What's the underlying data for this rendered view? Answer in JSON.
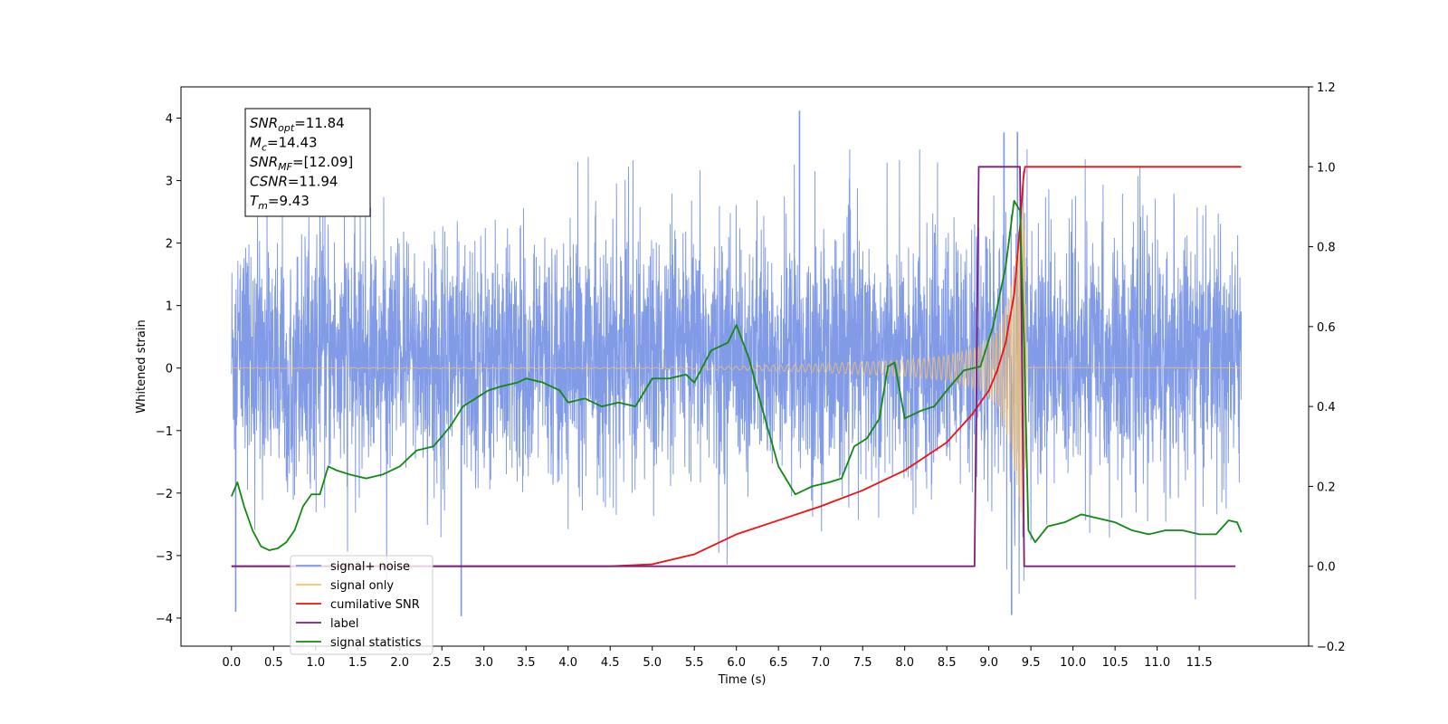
{
  "chart_data": {
    "type": "line",
    "xlabel": "Time (s)",
    "ylabel": "Whitened strain",
    "xlim": [
      -0.6,
      12.8
    ],
    "ylim": [
      -4.45,
      4.5
    ],
    "y2lim": [
      -0.2,
      1.2
    ],
    "x_ticks": [
      "0.0",
      "0.5",
      "1.0",
      "1.5",
      "2.0",
      "2.5",
      "3.0",
      "3.5",
      "4.0",
      "4.5",
      "5.0",
      "5.5",
      "6.0",
      "6.5",
      "7.0",
      "7.5",
      "8.0",
      "8.5",
      "9.0",
      "9.5",
      "10.0",
      "10.5",
      "11.0",
      "11.5"
    ],
    "y_ticks": [
      4,
      3,
      2,
      1,
      0,
      -1,
      -2,
      -3,
      -4
    ],
    "y_tick_labels": [
      "4",
      "3",
      "2",
      "1",
      "0",
      "−1",
      "−2",
      "−3",
      "−4"
    ],
    "y2_ticks": [
      1.2,
      1.0,
      0.8,
      0.6,
      0.4,
      0.2,
      0.0,
      -0.2
    ],
    "y2_tick_labels": [
      "1.2",
      "1.0",
      "0.8",
      "0.6",
      "0.4",
      "0.2",
      "0.0",
      "−0.2"
    ],
    "annotation": {
      "lines": [
        {
          "base": "SNR",
          "sub": "opt",
          "value": "=11.84"
        },
        {
          "base": "M",
          "sub": "c",
          "value": "=14.43"
        },
        {
          "base": "SNR",
          "sub": "MF",
          "value": "=[12.09]"
        },
        {
          "base": "CSNR",
          "sub": "",
          "value": "=11.94"
        },
        {
          "base": "T",
          "sub": "m",
          "value": "=9.43"
        }
      ]
    },
    "legend": {
      "position": "lower-left",
      "entries": [
        {
          "label": "signal+ noise",
          "color": "#7b96e6"
        },
        {
          "label": "signal only",
          "color": "#f5c26b"
        },
        {
          "label": "cumilative SNR",
          "color": "#ee1111"
        },
        {
          "label": "label",
          "color": "#7a1f7a"
        },
        {
          "label": "signal statistics",
          "color": "#118811"
        }
      ]
    },
    "noise_band": {
      "name": "signal+ noise",
      "axis": "left",
      "color": "#7b96e6",
      "x_range": [
        0,
        12.0
      ],
      "typical_range": [
        -1.6,
        2.3
      ],
      "extreme_peaks": [
        {
          "x": 0.05,
          "y": -3.9
        },
        {
          "x": 2.73,
          "y": -3.97
        },
        {
          "x": 6.75,
          "y": 4.12
        },
        {
          "x": 9.18,
          "y": 3.77
        },
        {
          "x": 9.27,
          "y": -3.95
        },
        {
          "x": 9.34,
          "y": 3.78
        }
      ]
    },
    "signal_only": {
      "name": "signal only",
      "axis": "left",
      "color": "#f5c26b",
      "envelope": [
        {
          "x": 0.0,
          "amp": 0.005
        },
        {
          "x": 5.0,
          "amp": 0.01
        },
        {
          "x": 6.0,
          "amp": 0.03
        },
        {
          "x": 7.0,
          "amp": 0.07
        },
        {
          "x": 8.0,
          "amp": 0.13
        },
        {
          "x": 8.5,
          "amp": 0.2
        },
        {
          "x": 8.9,
          "amp": 0.35
        },
        {
          "x": 9.1,
          "amp": 0.6
        },
        {
          "x": 9.25,
          "amp": 1.2
        },
        {
          "x": 9.35,
          "amp": 2.0
        },
        {
          "x": 9.42,
          "amp": 2.7
        },
        {
          "x": 9.45,
          "amp": 0.02
        },
        {
          "x": 12.0,
          "amp": 0.005
        }
      ]
    },
    "series": [
      {
        "name": "cumilative SNR",
        "axis": "right",
        "color": "#ee1111",
        "points": [
          [
            0,
            0
          ],
          [
            4.5,
            0
          ],
          [
            5.0,
            0.005
          ],
          [
            5.5,
            0.03
          ],
          [
            6.0,
            0.08
          ],
          [
            6.5,
            0.115
          ],
          [
            7.0,
            0.15
          ],
          [
            7.5,
            0.19
          ],
          [
            8.0,
            0.24
          ],
          [
            8.5,
            0.31
          ],
          [
            8.8,
            0.38
          ],
          [
            9.0,
            0.44
          ],
          [
            9.1,
            0.49
          ],
          [
            9.2,
            0.56
          ],
          [
            9.3,
            0.68
          ],
          [
            9.37,
            0.85
          ],
          [
            9.41,
            0.97
          ],
          [
            9.43,
            1.0
          ],
          [
            12.0,
            1.0
          ]
        ]
      },
      {
        "name": "label",
        "axis": "right",
        "color": "#7a1f7a",
        "points": [
          [
            0,
            0
          ],
          [
            8.83,
            0
          ],
          [
            8.88,
            1.0
          ],
          [
            9.37,
            1.0
          ],
          [
            9.42,
            0
          ],
          [
            11.93,
            0
          ]
        ]
      },
      {
        "name": "signal statistics",
        "axis": "right",
        "color": "#118811",
        "points": [
          [
            0,
            0.175
          ],
          [
            0.07,
            0.21
          ],
          [
            0.15,
            0.15
          ],
          [
            0.25,
            0.09
          ],
          [
            0.35,
            0.05
          ],
          [
            0.45,
            0.04
          ],
          [
            0.55,
            0.045
          ],
          [
            0.65,
            0.06
          ],
          [
            0.75,
            0.09
          ],
          [
            0.85,
            0.15
          ],
          [
            0.95,
            0.18
          ],
          [
            1.05,
            0.18
          ],
          [
            1.15,
            0.25
          ],
          [
            1.25,
            0.24
          ],
          [
            1.4,
            0.23
          ],
          [
            1.6,
            0.22
          ],
          [
            1.8,
            0.23
          ],
          [
            2.0,
            0.25
          ],
          [
            2.2,
            0.29
          ],
          [
            2.4,
            0.3
          ],
          [
            2.6,
            0.35
          ],
          [
            2.75,
            0.4
          ],
          [
            2.9,
            0.42
          ],
          [
            3.05,
            0.44
          ],
          [
            3.2,
            0.45
          ],
          [
            3.4,
            0.46
          ],
          [
            3.5,
            0.47
          ],
          [
            3.7,
            0.46
          ],
          [
            3.9,
            0.44
          ],
          [
            4.0,
            0.41
          ],
          [
            4.2,
            0.42
          ],
          [
            4.4,
            0.4
          ],
          [
            4.6,
            0.41
          ],
          [
            4.8,
            0.4
          ],
          [
            5.0,
            0.47
          ],
          [
            5.2,
            0.47
          ],
          [
            5.4,
            0.48
          ],
          [
            5.5,
            0.46
          ],
          [
            5.7,
            0.54
          ],
          [
            5.9,
            0.56
          ],
          [
            6.0,
            0.604
          ],
          [
            6.15,
            0.52
          ],
          [
            6.3,
            0.4
          ],
          [
            6.5,
            0.25
          ],
          [
            6.7,
            0.18
          ],
          [
            6.9,
            0.2
          ],
          [
            7.1,
            0.21
          ],
          [
            7.25,
            0.22
          ],
          [
            7.4,
            0.3
          ],
          [
            7.55,
            0.32
          ],
          [
            7.7,
            0.37
          ],
          [
            7.8,
            0.5
          ],
          [
            7.88,
            0.51
          ],
          [
            8.0,
            0.37
          ],
          [
            8.2,
            0.39
          ],
          [
            8.35,
            0.4
          ],
          [
            8.5,
            0.44
          ],
          [
            8.7,
            0.49
          ],
          [
            8.9,
            0.5
          ],
          [
            9.05,
            0.6
          ],
          [
            9.2,
            0.75
          ],
          [
            9.3,
            0.915
          ],
          [
            9.37,
            0.89
          ],
          [
            9.42,
            0.55
          ],
          [
            9.47,
            0.09
          ],
          [
            9.55,
            0.06
          ],
          [
            9.7,
            0.1
          ],
          [
            9.9,
            0.11
          ],
          [
            10.1,
            0.13
          ],
          [
            10.3,
            0.12
          ],
          [
            10.5,
            0.11
          ],
          [
            10.7,
            0.09
          ],
          [
            10.9,
            0.08
          ],
          [
            11.1,
            0.09
          ],
          [
            11.3,
            0.09
          ],
          [
            11.5,
            0.08
          ],
          [
            11.7,
            0.08
          ],
          [
            11.85,
            0.115
          ],
          [
            11.95,
            0.11
          ],
          [
            12.0,
            0.085
          ]
        ]
      }
    ]
  }
}
